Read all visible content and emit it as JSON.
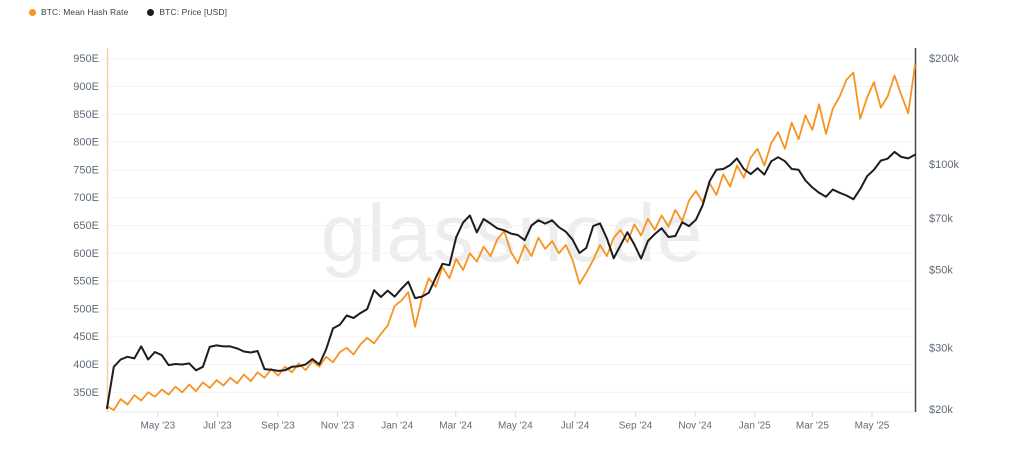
{
  "legend": [
    {
      "label": "BTC: Mean Hash Rate",
      "color": "#f79421"
    },
    {
      "label": "BTC: Price [USD]",
      "color": "#1d1d1f"
    }
  ],
  "watermark": "glassnode",
  "colors": {
    "hash_line": "#f79421",
    "price_line": "#1d1d1f",
    "grid": "#f3f3f3",
    "baseline": "#e9e9e9",
    "x_tick_mark": "#d9d9d9",
    "tick_text": "#5f6b76",
    "left_axis_line": "#f8cf9d",
    "right_axis_line": "#47484a",
    "background": "#ffffff"
  },
  "chart_data": {
    "type": "line",
    "title": "",
    "sampling": "weekly",
    "x_start": "2023-03-10",
    "x_end": "2025-06-14",
    "grid": "horizontal-only",
    "legend_position": "top-left",
    "x_ticks": [
      {
        "label": "May '23",
        "date": "2023-05-01"
      },
      {
        "label": "Jul '23",
        "date": "2023-07-01"
      },
      {
        "label": "Sep '23",
        "date": "2023-09-01"
      },
      {
        "label": "Nov '23",
        "date": "2023-11-01"
      },
      {
        "label": "Jan '24",
        "date": "2024-01-01"
      },
      {
        "label": "Mar '24",
        "date": "2024-03-01"
      },
      {
        "label": "May '24",
        "date": "2024-05-01"
      },
      {
        "label": "Jul '24",
        "date": "2024-07-01"
      },
      {
        "label": "Sep '24",
        "date": "2024-09-01"
      },
      {
        "label": "Nov '24",
        "date": "2024-11-01"
      },
      {
        "label": "Jan '25",
        "date": "2025-01-01"
      },
      {
        "label": "Mar '25",
        "date": "2025-03-01"
      },
      {
        "label": "May '25",
        "date": "2025-05-01"
      }
    ],
    "left_axis": {
      "name": "BTC: Mean Hash Rate",
      "unit": "EH/s",
      "scale": "linear",
      "ticks": [
        {
          "label": "950E",
          "value": 950
        },
        {
          "label": "900E",
          "value": 900
        },
        {
          "label": "850E",
          "value": 850
        },
        {
          "label": "800E",
          "value": 800
        },
        {
          "label": "750E",
          "value": 750
        },
        {
          "label": "700E",
          "value": 700
        },
        {
          "label": "650E",
          "value": 650
        },
        {
          "label": "600E",
          "value": 600
        },
        {
          "label": "550E",
          "value": 550
        },
        {
          "label": "500E",
          "value": 500
        },
        {
          "label": "450E",
          "value": 450
        },
        {
          "label": "400E",
          "value": 400
        },
        {
          "label": "350E",
          "value": 350
        }
      ]
    },
    "right_axis": {
      "name": "BTC: Price [USD]",
      "unit": "USD (thousands)",
      "scale": "log",
      "ticks": [
        {
          "label": "$200k",
          "value": 200
        },
        {
          "label": "$100k",
          "value": 100
        },
        {
          "label": "$70k",
          "value": 70
        },
        {
          "label": "$50k",
          "value": 50
        },
        {
          "label": "$30k",
          "value": 30
        },
        {
          "label": "$20k",
          "value": 20
        }
      ]
    },
    "series": [
      {
        "name": "BTC: Mean Hash Rate",
        "axis": "left",
        "color": "#f79421",
        "values": [
          325,
          318,
          338,
          328,
          345,
          335,
          350,
          342,
          355,
          346,
          360,
          350,
          364,
          352,
          368,
          358,
          372,
          362,
          376,
          366,
          382,
          370,
          386,
          376,
          392,
          380,
          396,
          386,
          402,
          390,
          406,
          396,
          414,
          404,
          422,
          430,
          418,
          436,
          448,
          438,
          455,
          470,
          505,
          515,
          530,
          468,
          520,
          555,
          540,
          575,
          555,
          590,
          570,
          600,
          585,
          612,
          595,
          625,
          640,
          602,
          582,
          615,
          595,
          628,
          608,
          622,
          600,
          615,
          588,
          545,
          565,
          588,
          615,
          595,
          628,
          642,
          620,
          652,
          632,
          662,
          642,
          668,
          648,
          678,
          658,
          695,
          712,
          692,
          726,
          705,
          742,
          720,
          758,
          736,
          772,
          788,
          758,
          798,
          818,
          788,
          835,
          805,
          848,
          822,
          868,
          815,
          860,
          882,
          912,
          925,
          842,
          880,
          908,
          862,
          882,
          920,
          885,
          852,
          938
        ]
      },
      {
        "name": "BTC: Price [USD]",
        "axis": "right",
        "color": "#1d1d1f",
        "values": [
          20.2,
          26.5,
          27.8,
          28.3,
          28.0,
          30.3,
          27.8,
          29.2,
          28.6,
          26.8,
          27.0,
          26.9,
          27.1,
          25.9,
          26.5,
          30.2,
          30.5,
          30.3,
          30.3,
          29.9,
          29.3,
          29.1,
          29.4,
          26.1,
          26.0,
          25.8,
          25.9,
          26.5,
          26.6,
          26.9,
          27.9,
          26.9,
          29.7,
          34.1,
          34.9,
          37.1,
          36.5,
          37.7,
          38.7,
          43.8,
          41.9,
          43.7,
          42.0,
          44.2,
          46.3,
          41.6,
          42.0,
          43.1,
          47.5,
          52.1,
          51.6,
          62.0,
          68.3,
          71.5,
          64.0,
          69.9,
          67.8,
          65.7,
          64.9,
          63.5,
          62.9,
          60.8,
          67.0,
          69.3,
          67.8,
          69.3,
          66.2,
          64.3,
          61.0,
          55.9,
          57.8,
          66.7,
          67.9,
          61.5,
          54.0,
          58.9,
          64.1,
          59.1,
          53.9,
          60.5,
          63.3,
          65.8,
          62.1,
          62.5,
          68.4,
          66.7,
          69.5,
          76.5,
          89.5,
          96.5,
          97.0,
          99.5,
          104.0,
          97.0,
          93.8,
          97.5,
          93.5,
          102.0,
          104.8,
          102.1,
          97.0,
          96.5,
          90.0,
          86.0,
          83.0,
          80.9,
          84.8,
          83.0,
          81.5,
          79.5,
          85.0,
          92.5,
          96.5,
          102.5,
          103.8,
          108.5,
          105.0,
          104.0,
          106.5
        ]
      }
    ]
  }
}
